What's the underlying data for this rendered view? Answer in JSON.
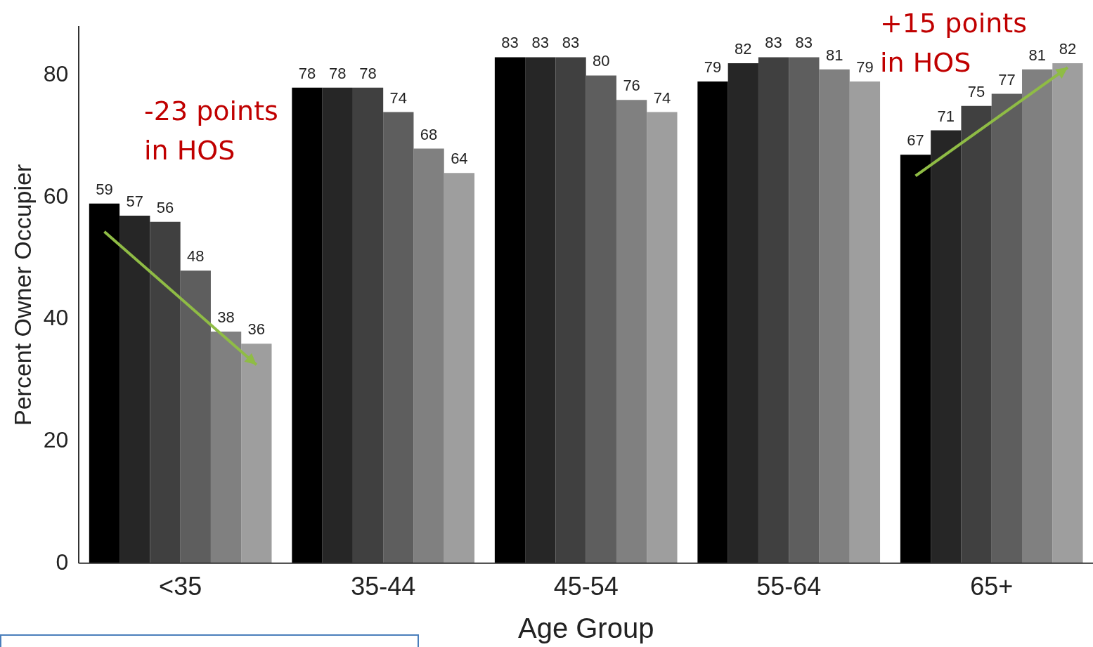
{
  "chart_data": {
    "type": "bar",
    "xlabel": "Age Group",
    "ylabel": "Percent Owner Occupier",
    "categories": [
      "<35",
      "35-44",
      "45-54",
      "55-64",
      "65+"
    ],
    "series": [
      {
        "color": "#000000",
        "values": [
          59,
          78,
          83,
          79,
          67
        ]
      },
      {
        "color": "#262626",
        "values": [
          57,
          78,
          83,
          82,
          71
        ]
      },
      {
        "color": "#404040",
        "values": [
          56,
          78,
          83,
          83,
          75
        ]
      },
      {
        "color": "#5e5e5e",
        "values": [
          48,
          74,
          80,
          83,
          77
        ]
      },
      {
        "color": "#808080",
        "values": [
          38,
          68,
          76,
          81,
          81
        ]
      },
      {
        "color": "#9e9e9e",
        "values": [
          36,
          64,
          74,
          79,
          82
        ]
      }
    ],
    "ylim": [
      0,
      88
    ],
    "yticks": [
      0,
      20,
      40,
      60,
      80
    ],
    "grid": false,
    "legend": false,
    "data_labels": true,
    "annotations": [
      "-23 points in HOS",
      "+15 points in HOS"
    ]
  }
}
